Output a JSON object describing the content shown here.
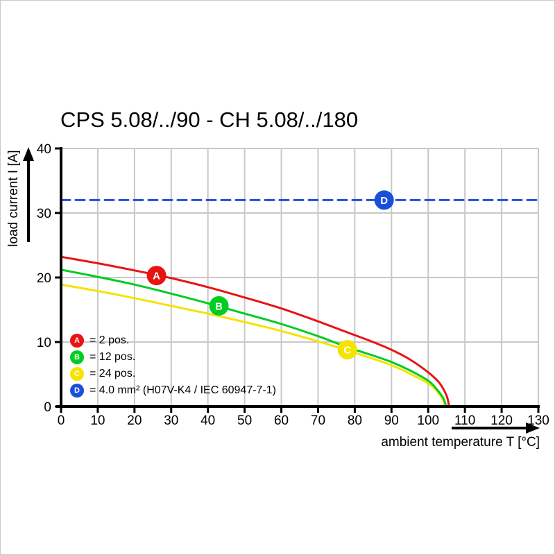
{
  "title": "CPS 5.08/../90 - CH 5.08/../180",
  "chart_data": {
    "type": "line",
    "title": "CPS 5.08/../90 - CH 5.08/../180",
    "xlabel": "ambient temperature T [°C]",
    "ylabel": "load current I [A]",
    "xlim": [
      0,
      130
    ],
    "ylim": [
      0,
      40
    ],
    "x_ticks": [
      0,
      10,
      20,
      30,
      40,
      50,
      60,
      70,
      80,
      90,
      100,
      110,
      120,
      130
    ],
    "y_ticks": [
      0,
      10,
      20,
      30,
      40
    ],
    "grid": true,
    "grid_color": "#c8c8c8",
    "axis_color": "#000000",
    "series": [
      {
        "id": "C",
        "name": "24 pos.",
        "color": "#f5e300",
        "style": "solid",
        "points": [
          [
            0,
            18.9
          ],
          [
            10,
            17.9
          ],
          [
            20,
            16.8
          ],
          [
            30,
            15.6
          ],
          [
            40,
            14.4
          ],
          [
            50,
            13.1
          ],
          [
            60,
            11.7
          ],
          [
            70,
            10.1
          ],
          [
            78,
            8.7
          ],
          [
            85,
            7.4
          ],
          [
            90,
            6.4
          ],
          [
            95,
            5.1
          ],
          [
            100,
            3.6
          ],
          [
            102,
            2.6
          ],
          [
            104,
            1.1
          ],
          [
            104.5,
            0
          ]
        ],
        "marker": {
          "x": 78,
          "y": 8.8
        }
      },
      {
        "id": "B",
        "name": "12 pos.",
        "color": "#00cc22",
        "style": "solid",
        "points": [
          [
            0,
            21.2
          ],
          [
            10,
            20.1
          ],
          [
            20,
            18.9
          ],
          [
            30,
            17.5
          ],
          [
            40,
            16.0
          ],
          [
            50,
            14.4
          ],
          [
            60,
            12.8
          ],
          [
            70,
            10.9
          ],
          [
            78,
            9.2
          ],
          [
            85,
            7.9
          ],
          [
            90,
            6.9
          ],
          [
            95,
            5.6
          ],
          [
            100,
            4.0
          ],
          [
            102,
            2.9
          ],
          [
            104,
            1.4
          ],
          [
            104.9,
            0
          ]
        ],
        "marker": {
          "x": 43,
          "y": 15.6
        }
      },
      {
        "id": "A",
        "name": "2 pos.",
        "color": "#e81414",
        "style": "solid",
        "points": [
          [
            0,
            23.2
          ],
          [
            10,
            22.2
          ],
          [
            20,
            21.1
          ],
          [
            30,
            19.9
          ],
          [
            40,
            18.5
          ],
          [
            50,
            16.9
          ],
          [
            60,
            15.2
          ],
          [
            70,
            13.2
          ],
          [
            78,
            11.5
          ],
          [
            85,
            10.0
          ],
          [
            90,
            8.8
          ],
          [
            95,
            7.3
          ],
          [
            100,
            5.3
          ],
          [
            103,
            3.7
          ],
          [
            105,
            1.7
          ],
          [
            105.7,
            0
          ]
        ],
        "marker": {
          "x": 26,
          "y": 20.3
        }
      },
      {
        "id": "D",
        "name": "4.0 mm² (H07V-K4 / IEC 60947-7-1)",
        "color": "#1b4fdb",
        "style": "dashed",
        "points": [
          [
            0,
            32
          ],
          [
            130,
            32
          ]
        ],
        "marker": {
          "x": 88,
          "y": 32
        }
      }
    ],
    "legend": [
      {
        "id": "A",
        "color": "#e81414",
        "label": "= 2 pos."
      },
      {
        "id": "B",
        "color": "#00cc22",
        "label": "= 12 pos."
      },
      {
        "id": "C",
        "color": "#f5e300",
        "label": "= 24 pos."
      },
      {
        "id": "D",
        "color": "#1b4fdb",
        "label": "= 4.0 mm² (H07V-K4 / IEC 60947-7-1)"
      }
    ]
  }
}
